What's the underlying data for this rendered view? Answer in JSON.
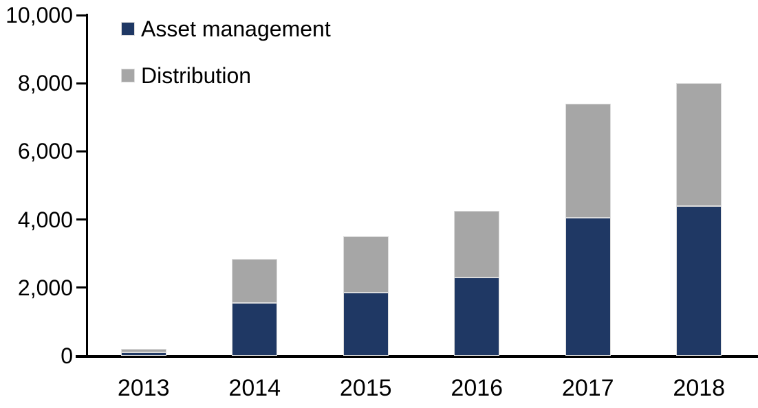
{
  "chart_data": {
    "type": "bar",
    "stacked": true,
    "title": "",
    "xlabel": "",
    "ylabel": "",
    "categories": [
      "2013",
      "2014",
      "2015",
      "2016",
      "2017",
      "2018"
    ],
    "series": [
      {
        "name": "Asset management",
        "color": "#1f3864",
        "values": [
          100,
          1550,
          1850,
          2300,
          4050,
          4400
        ]
      },
      {
        "name": "Distribution",
        "color": "#a6a6a6",
        "values": [
          100,
          1300,
          1650,
          1950,
          3350,
          3600
        ]
      }
    ],
    "stack_totals": [
      200,
      2850,
      3500,
      4250,
      7400,
      8000
    ],
    "ylim": [
      0,
      10000
    ],
    "yticks": [
      0,
      2000,
      4000,
      6000,
      8000,
      10000
    ],
    "ytick_labels": [
      "0",
      "2,000",
      "4,000",
      "6,000",
      "8,000",
      "10,000"
    ],
    "grid": false,
    "legend_position": "top-left",
    "axis_color": "#000000"
  }
}
